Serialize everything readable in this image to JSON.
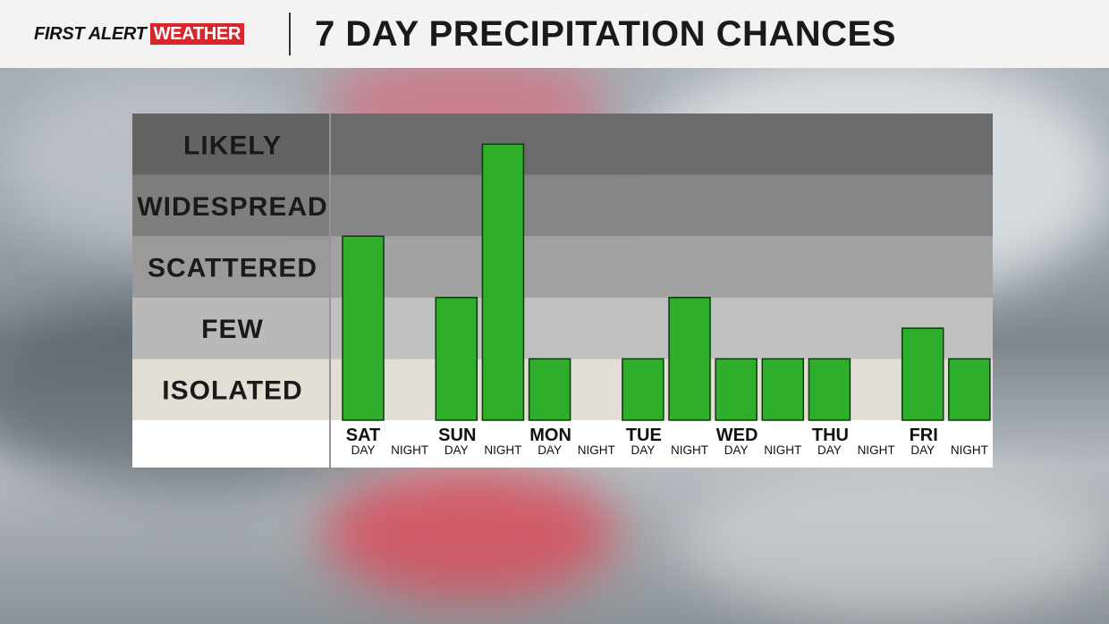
{
  "header": {
    "logo_first_alert": "FIRST ALERT",
    "logo_weather": "WEATHER",
    "title": "7 DAY PRECIPITATION CHANCES"
  },
  "colors": {
    "bar_fill": "#2fae2b",
    "bar_stroke": "#0d3a0d",
    "logo_red": "#d9262c"
  },
  "chart_data": {
    "type": "bar",
    "title": "7 DAY PRECIPITATION CHANCES",
    "levels": [
      "ISOLATED",
      "FEW",
      "SCATTERED",
      "WIDESPREAD",
      "LIKELY"
    ],
    "days": [
      "SAT",
      "SUN",
      "MON",
      "TUE",
      "WED",
      "THU",
      "FRI"
    ],
    "periods": [
      "DAY",
      "NIGHT"
    ],
    "categories": [
      "SAT DAY",
      "SAT NIGHT",
      "SUN DAY",
      "SUN NIGHT",
      "MON DAY",
      "MON NIGHT",
      "TUE DAY",
      "TUE NIGHT",
      "WED DAY",
      "WED NIGHT",
      "THU DAY",
      "THU NIGHT",
      "FRI DAY",
      "FRI NIGHT"
    ],
    "values": [
      3,
      0,
      2,
      4.5,
      1,
      0,
      1,
      2,
      1,
      1,
      1,
      0,
      1.5,
      1
    ],
    "ylim": [
      0,
      5
    ]
  }
}
